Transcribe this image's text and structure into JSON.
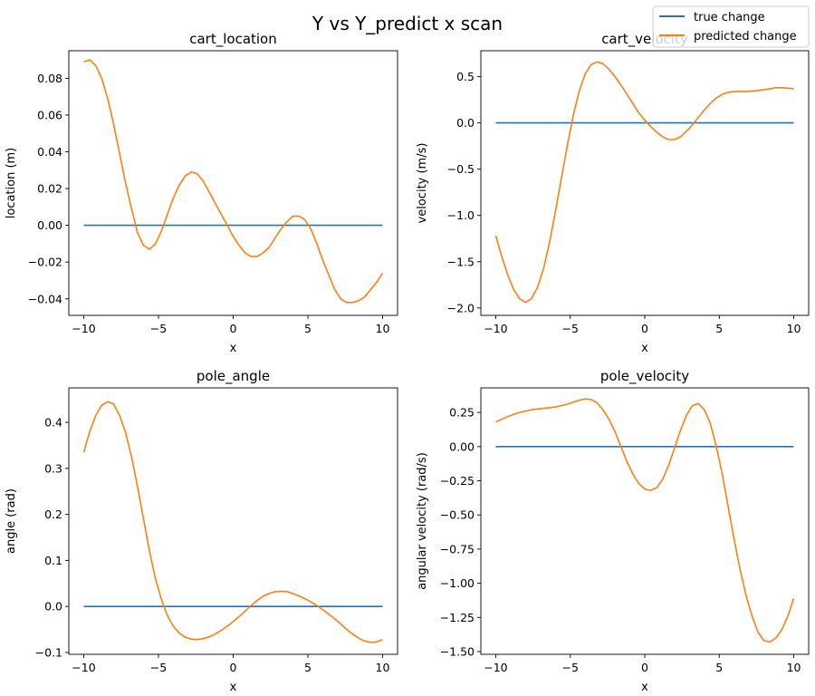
{
  "suptitle": "Y vs Y_predict x scan",
  "colors": {
    "true_line": "#1f77b4",
    "pred_line": "#ff7f0e",
    "axes": "#000000"
  },
  "legend": {
    "entries": [
      "true change",
      "predicted change"
    ],
    "placement": "upper-right"
  },
  "chart_data": [
    {
      "type": "line",
      "title": "cart_location",
      "xlabel": "x",
      "ylabel": "location (m)",
      "xlim": [
        -11,
        11
      ],
      "ylim": [
        -0.049,
        0.095
      ],
      "xticks": [
        -10,
        -5,
        0,
        5,
        10
      ],
      "yticks": [
        -0.04,
        -0.02,
        0.0,
        0.02,
        0.04,
        0.06,
        0.08
      ],
      "ytick_labels": [
        "−0.04",
        "−0.02",
        "0.00",
        "0.02",
        "0.04",
        "0.06",
        "0.08"
      ],
      "series": [
        {
          "name": "true change",
          "x": [
            -10,
            10
          ],
          "y": [
            0,
            0
          ]
        },
        {
          "name": "predicted change",
          "x": [
            -10,
            -9.6,
            -9.2,
            -8.8,
            -8.4,
            -8,
            -7.6,
            -7.2,
            -6.8,
            -6.4,
            -6,
            -5.6,
            -5.2,
            -4.8,
            -4.4,
            -4,
            -3.6,
            -3.2,
            -2.8,
            -2.4,
            -2,
            -1.6,
            -1.2,
            -0.8,
            -0.4,
            0,
            0.4,
            0.8,
            1.2,
            1.6,
            2,
            2.4,
            2.8,
            3.2,
            3.6,
            4,
            4.4,
            4.8,
            5.2,
            5.6,
            6,
            6.4,
            6.8,
            7.2,
            7.6,
            8,
            8.4,
            8.8,
            9.2,
            9.6,
            10
          ],
          "y": [
            0.089,
            0.09,
            0.087,
            0.08,
            0.069,
            0.055,
            0.039,
            0.023,
            0.009,
            -0.004,
            -0.011,
            -0.013,
            -0.01,
            -0.003,
            0.006,
            0.015,
            0.022,
            0.027,
            0.029,
            0.028,
            0.024,
            0.018,
            0.012,
            0.006,
            0.0,
            -0.006,
            -0.011,
            -0.015,
            -0.017,
            -0.017,
            -0.015,
            -0.012,
            -0.007,
            -0.002,
            0.002,
            0.005,
            0.005,
            0.003,
            -0.002,
            -0.01,
            -0.019,
            -0.027,
            -0.035,
            -0.04,
            -0.042,
            -0.042,
            -0.041,
            -0.039,
            -0.035,
            -0.031,
            -0.026
          ]
        }
      ]
    },
    {
      "type": "line",
      "title": "cart_velocity",
      "xlabel": "x",
      "ylabel": "velocity (m/s)",
      "xlim": [
        -11,
        11
      ],
      "ylim": [
        -2.08,
        0.78
      ],
      "xticks": [
        -10,
        -5,
        0,
        5,
        10
      ],
      "yticks": [
        -2.0,
        -1.5,
        -1.0,
        -0.5,
        0.0,
        0.5
      ],
      "ytick_labels": [
        "−2.0",
        "−1.5",
        "−1.0",
        "−0.5",
        "0.0",
        "0.5"
      ],
      "series": [
        {
          "name": "true change",
          "x": [
            -10,
            10
          ],
          "y": [
            0,
            0
          ]
        },
        {
          "name": "predicted change",
          "x": [
            -10,
            -9.6,
            -9.2,
            -8.8,
            -8.4,
            -8,
            -7.6,
            -7.2,
            -6.8,
            -6.4,
            -6,
            -5.6,
            -5.2,
            -4.8,
            -4.4,
            -4,
            -3.6,
            -3.2,
            -2.8,
            -2.4,
            -2,
            -1.6,
            -1.2,
            -0.8,
            -0.4,
            0,
            0.4,
            0.8,
            1.2,
            1.6,
            2,
            2.4,
            2.8,
            3.2,
            3.6,
            4,
            4.4,
            4.8,
            5.2,
            5.6,
            6,
            6.4,
            6.8,
            7.2,
            7.6,
            8,
            8.4,
            8.8,
            9.2,
            9.6,
            10
          ],
          "y": [
            -1.22,
            -1.44,
            -1.64,
            -1.8,
            -1.9,
            -1.94,
            -1.9,
            -1.78,
            -1.58,
            -1.3,
            -0.96,
            -0.6,
            -0.25,
            0.08,
            0.34,
            0.53,
            0.63,
            0.66,
            0.64,
            0.58,
            0.5,
            0.41,
            0.31,
            0.21,
            0.11,
            0.03,
            -0.04,
            -0.1,
            -0.15,
            -0.18,
            -0.18,
            -0.15,
            -0.09,
            -0.02,
            0.06,
            0.14,
            0.21,
            0.27,
            0.31,
            0.33,
            0.34,
            0.34,
            0.34,
            0.345,
            0.35,
            0.36,
            0.37,
            0.38,
            0.38,
            0.375,
            0.37
          ]
        }
      ]
    },
    {
      "type": "line",
      "title": "pole_angle",
      "xlabel": "x",
      "ylabel": "angle (rad)",
      "xlim": [
        -11,
        11
      ],
      "ylim": [
        -0.104,
        0.475
      ],
      "xticks": [
        -10,
        -5,
        0,
        5,
        10
      ],
      "yticks": [
        -0.1,
        0.0,
        0.1,
        0.2,
        0.3,
        0.4
      ],
      "ytick_labels": [
        "−0.1",
        "0.0",
        "0.1",
        "0.2",
        "0.3",
        "0.4"
      ],
      "series": [
        {
          "name": "true change",
          "x": [
            -10,
            10
          ],
          "y": [
            0,
            0
          ]
        },
        {
          "name": "predicted change",
          "x": [
            -10,
            -9.6,
            -9.2,
            -8.8,
            -8.4,
            -8,
            -7.6,
            -7.2,
            -6.8,
            -6.4,
            -6,
            -5.6,
            -5.2,
            -4.8,
            -4.4,
            -4,
            -3.6,
            -3.2,
            -2.8,
            -2.4,
            -2,
            -1.6,
            -1.2,
            -0.8,
            -0.4,
            0,
            0.4,
            0.8,
            1.2,
            1.6,
            2,
            2.4,
            2.8,
            3.2,
            3.6,
            4,
            4.4,
            4.8,
            5.2,
            5.6,
            6,
            6.4,
            6.8,
            7.2,
            7.6,
            8,
            8.4,
            8.8,
            9.2,
            9.6,
            10
          ],
          "y": [
            0.335,
            0.38,
            0.415,
            0.437,
            0.445,
            0.44,
            0.415,
            0.378,
            0.325,
            0.26,
            0.19,
            0.12,
            0.06,
            0.015,
            -0.02,
            -0.043,
            -0.058,
            -0.067,
            -0.071,
            -0.072,
            -0.07,
            -0.066,
            -0.06,
            -0.052,
            -0.043,
            -0.033,
            -0.022,
            -0.01,
            0.002,
            0.013,
            0.022,
            0.028,
            0.032,
            0.033,
            0.032,
            0.028,
            0.023,
            0.017,
            0.01,
            0.002,
            -0.007,
            -0.017,
            -0.027,
            -0.038,
            -0.05,
            -0.06,
            -0.069,
            -0.075,
            -0.078,
            -0.077,
            -0.072
          ]
        }
      ]
    },
    {
      "type": "line",
      "title": "pole_velocity",
      "xlabel": "x",
      "ylabel": "angular velocity (rad/s)",
      "xlim": [
        -11,
        11
      ],
      "ylim": [
        -1.52,
        0.43
      ],
      "xticks": [
        -10,
        -5,
        0,
        5,
        10
      ],
      "yticks": [
        -1.5,
        -1.25,
        -1.0,
        -0.75,
        -0.5,
        -0.25,
        0.0,
        0.25
      ],
      "ytick_labels": [
        "−1.50",
        "−1.25",
        "−1.00",
        "−0.75",
        "−0.50",
        "−0.25",
        "0.00",
        "0.25"
      ],
      "series": [
        {
          "name": "true change",
          "x": [
            -10,
            10
          ],
          "y": [
            0,
            0
          ]
        },
        {
          "name": "predicted change",
          "x": [
            -10,
            -9.6,
            -9.2,
            -8.8,
            -8.4,
            -8,
            -7.6,
            -7.2,
            -6.8,
            -6.4,
            -6,
            -5.6,
            -5.2,
            -4.8,
            -4.4,
            -4,
            -3.6,
            -3.2,
            -2.8,
            -2.4,
            -2,
            -1.6,
            -1.2,
            -0.8,
            -0.4,
            0,
            0.4,
            0.8,
            1.2,
            1.6,
            2,
            2.4,
            2.8,
            3.2,
            3.6,
            4,
            4.4,
            4.8,
            5.2,
            5.6,
            6,
            6.4,
            6.8,
            7.2,
            7.6,
            8,
            8.4,
            8.8,
            9.2,
            9.6,
            10
          ],
          "y": [
            0.18,
            0.2,
            0.22,
            0.235,
            0.25,
            0.26,
            0.27,
            0.275,
            0.28,
            0.285,
            0.29,
            0.3,
            0.31,
            0.325,
            0.34,
            0.35,
            0.345,
            0.32,
            0.27,
            0.2,
            0.11,
            0.0,
            -0.11,
            -0.2,
            -0.27,
            -0.31,
            -0.32,
            -0.3,
            -0.24,
            -0.14,
            -0.01,
            0.12,
            0.23,
            0.3,
            0.315,
            0.27,
            0.17,
            0.0,
            -0.2,
            -0.44,
            -0.68,
            -0.9,
            -1.09,
            -1.24,
            -1.36,
            -1.42,
            -1.43,
            -1.4,
            -1.34,
            -1.24,
            -1.11
          ]
        }
      ]
    }
  ]
}
